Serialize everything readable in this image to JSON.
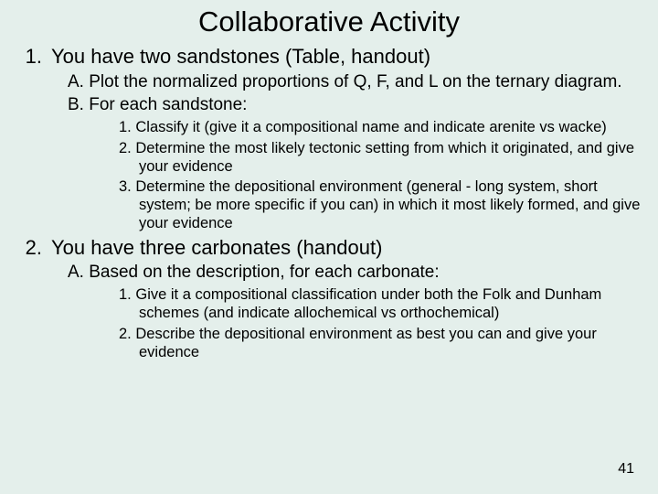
{
  "title": "Collaborative Activity",
  "page_number": "41",
  "colors": {
    "background": "#e4efeb",
    "text": "#000000"
  },
  "typography": {
    "title_fontsize": 31,
    "l1_fontsize": 22,
    "l2_fontsize": 19,
    "l3_fontsize": 16.5,
    "font_family": "Arial"
  },
  "items": [
    {
      "num": "1.",
      "text": "You have two sandstones (Table, handout)",
      "sub": [
        {
          "num": "A.",
          "text": "Plot the normalized proportions of Q, F, and L on the ternary diagram."
        },
        {
          "num": "B.",
          "text": "For each sandstone:",
          "sub": [
            {
              "num": "1.",
              "text": "Classify it (give it a compositional name and indicate arenite vs wacke)"
            },
            {
              "num": "2.",
              "text": "Determine the most likely tectonic setting from which it originated, and give your evidence"
            },
            {
              "num": "3.",
              "text": "Determine the depositional environment (general - long system, short system; be more specific if you can) in which it most likely formed, and give your evidence"
            }
          ]
        }
      ]
    },
    {
      "num": "2.",
      "text": "You have three carbonates (handout)",
      "sub": [
        {
          "num": "A.",
          "text": "Based on the description, for each carbonate:",
          "sub": [
            {
              "num": "1.",
              "text": "Give it a compositional classification under both the Folk and Dunham schemes (and indicate allochemical vs orthochemical)"
            },
            {
              "num": "2.",
              "text": "Describe the depositional environment as best you can and give your evidence"
            }
          ]
        }
      ]
    }
  ]
}
